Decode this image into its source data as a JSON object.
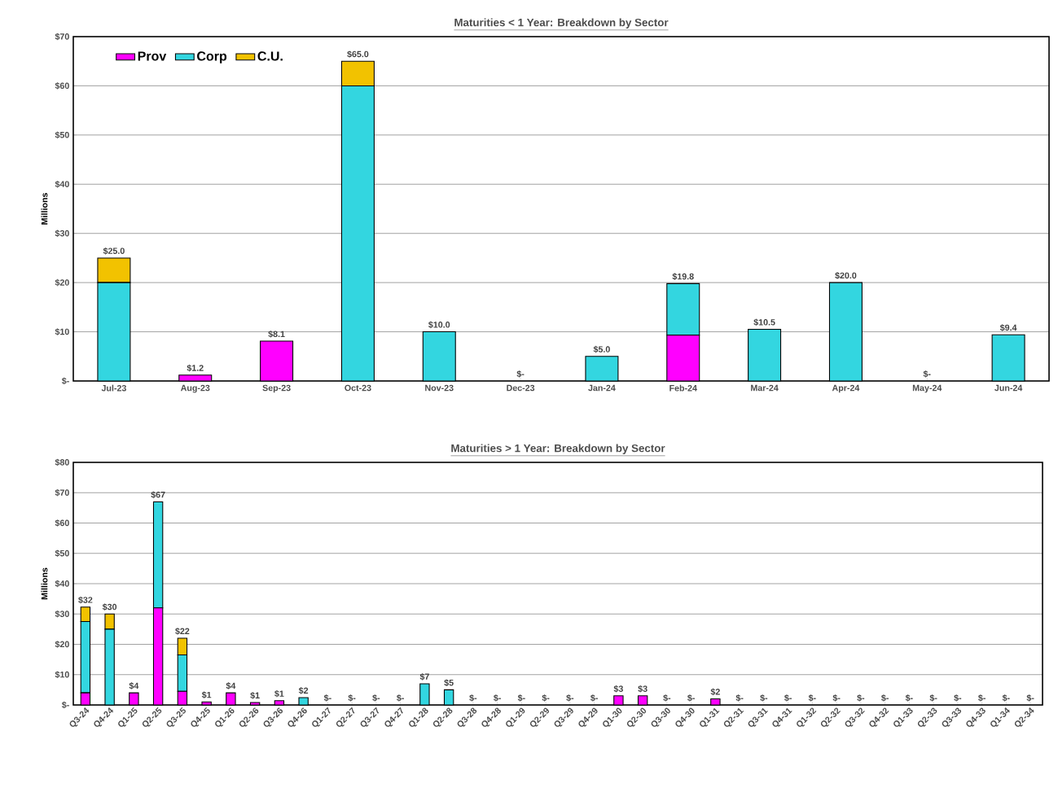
{
  "chart_data": [
    {
      "type": "bar",
      "stacked": true,
      "title": "Maturities < 1 Year: Breakdown by Sector",
      "ylabel": "Millions",
      "categories": [
        "Jul-23",
        "Aug-23",
        "Sep-23",
        "Oct-23",
        "Nov-23",
        "Dec-23",
        "Jan-24",
        "Feb-24",
        "Mar-24",
        "Apr-24",
        "May-24",
        "Jun-24"
      ],
      "series": [
        {
          "name": "Prov",
          "color": "#ff00ff",
          "values": [
            0,
            1.2,
            8.1,
            0,
            0,
            0,
            0,
            9.3,
            0,
            0,
            0,
            0
          ]
        },
        {
          "name": "Corp",
          "color": "#33d6e0",
          "values": [
            20,
            0,
            0,
            60,
            10,
            0,
            5,
            10.5,
            10.5,
            20,
            0,
            9.4
          ]
        },
        {
          "name": "C.U.",
          "color": "#f2c200",
          "values": [
            5,
            0,
            0,
            5,
            0,
            0,
            0,
            0,
            0,
            0,
            0,
            0
          ]
        }
      ],
      "totals": [
        "$25.0",
        "$1.2",
        "$8.1",
        "$65.0",
        "$10.0",
        "$-",
        "$5.0",
        "$19.8",
        "$10.5",
        "$20.0",
        "$-",
        "$9.4"
      ],
      "ylim": [
        0,
        70
      ],
      "yticks": [
        {
          "value": 0,
          "label": "$-"
        },
        {
          "value": 10,
          "label": "$10"
        },
        {
          "value": 20,
          "label": "$20"
        },
        {
          "value": 30,
          "label": "$30"
        },
        {
          "value": 40,
          "label": "$40"
        },
        {
          "value": 50,
          "label": "$50"
        },
        {
          "value": 60,
          "label": "$60"
        },
        {
          "value": 70,
          "label": "$70"
        }
      ],
      "grid": "y",
      "legend": "top left"
    },
    {
      "type": "bar",
      "stacked": true,
      "title": "Maturities > 1 Year: Breakdown by Sector",
      "ylabel": "Millions",
      "categories": [
        "Q3-24",
        "Q4-24",
        "Q1-25",
        "Q2-25",
        "Q3-25",
        "Q4-25",
        "Q1-26",
        "Q2-26",
        "Q3-26",
        "Q4-26",
        "Q1-27",
        "Q2-27",
        "Q3-27",
        "Q4-27",
        "Q1-28",
        "Q2-28",
        "Q3-28",
        "Q4-28",
        "Q1-29",
        "Q2-29",
        "Q3-29",
        "Q4-29",
        "Q1-30",
        "Q2-30",
        "Q3-30",
        "Q4-30",
        "Q1-31",
        "Q2-31",
        "Q3-31",
        "Q4-31",
        "Q1-32",
        "Q2-32",
        "Q3-32",
        "Q4-32",
        "Q1-33",
        "Q2-33",
        "Q3-33",
        "Q4-33",
        "Q1-34",
        "Q2-34"
      ],
      "series": [
        {
          "color": "#ff00ff",
          "values": [
            4,
            0,
            4,
            32,
            4.5,
            1,
            4,
            0.8,
            1.4,
            0,
            0,
            0,
            0,
            0,
            0,
            0,
            0,
            0,
            0,
            0,
            0,
            0,
            3,
            3,
            0,
            0,
            2,
            0,
            0,
            0,
            0,
            0,
            0,
            0,
            0,
            0,
            0,
            0,
            0,
            0
          ]
        },
        {
          "color": "#33d6e0",
          "values": [
            23.5,
            25,
            0,
            35,
            12,
            0,
            0,
            0,
            0,
            2.4,
            0,
            0,
            0,
            0,
            7,
            5,
            0,
            0,
            0,
            0,
            0,
            0,
            0,
            0,
            0,
            0,
            0,
            0,
            0,
            0,
            0,
            0,
            0,
            0,
            0,
            0,
            0,
            0,
            0,
            0
          ]
        },
        {
          "color": "#f2c200",
          "values": [
            4.8,
            5,
            0,
            0,
            5.5,
            0,
            0,
            0,
            0,
            0,
            0,
            0,
            0,
            0,
            0,
            0,
            0,
            0,
            0,
            0,
            0,
            0,
            0,
            0,
            0,
            0,
            0,
            0,
            0,
            0,
            0,
            0,
            0,
            0,
            0,
            0,
            0,
            0,
            0,
            0
          ]
        }
      ],
      "totals": [
        "$32",
        "$30",
        "$4",
        "$67",
        "$22",
        "$1",
        "$4",
        "$1",
        "$1",
        "$2",
        "$-",
        "$-",
        "$-",
        "$-",
        "$7",
        "$5",
        "$-",
        "$-",
        "$-",
        "$-",
        "$-",
        "$-",
        "$3",
        "$3",
        "$-",
        "$-",
        "$2",
        "$-",
        "$-",
        "$-",
        "$-",
        "$-",
        "$-",
        "$-",
        "$-",
        "$-",
        "$-",
        "$-",
        "$-",
        "$-"
      ],
      "ylim": [
        0,
        80
      ],
      "yticks": [
        {
          "value": 0,
          "label": "$-"
        },
        {
          "value": 10,
          "label": "$10"
        },
        {
          "value": 20,
          "label": "$20"
        },
        {
          "value": 30,
          "label": "$30"
        },
        {
          "value": 40,
          "label": "$40"
        },
        {
          "value": 50,
          "label": "$50"
        },
        {
          "value": 60,
          "label": "$60"
        },
        {
          "value": 70,
          "label": "$70"
        },
        {
          "value": 80,
          "label": "$80"
        }
      ],
      "grid": "y"
    }
  ]
}
